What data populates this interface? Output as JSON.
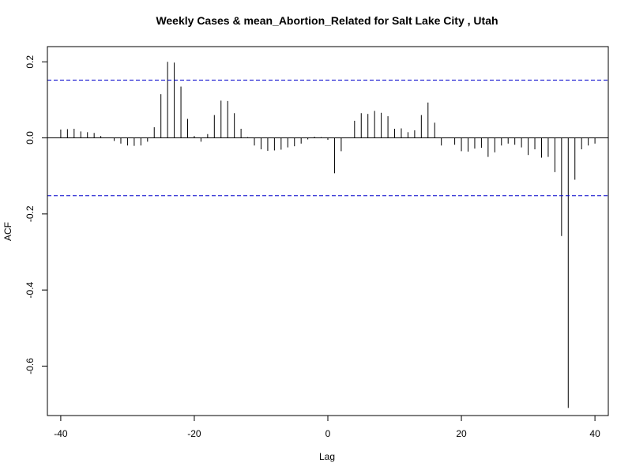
{
  "chart_data": {
    "type": "bar",
    "title": "Weekly Cases & mean_Abortion_Related for Salt Lake City , Utah",
    "xlabel": "Lag",
    "ylabel": "ACF",
    "xlim": [
      -42,
      42
    ],
    "ylim": [
      -0.73,
      0.24
    ],
    "x_ticks": [
      -40,
      -20,
      0,
      20,
      40
    ],
    "y_ticks": [
      0.2,
      0.0,
      -0.2,
      -0.4,
      -0.6
    ],
    "x_tick_labels": [
      "-40",
      "-20",
      "0",
      "20",
      "40"
    ],
    "y_tick_labels": [
      "0.2",
      "0.0",
      "-0.2",
      "-0.4",
      "-0.6"
    ],
    "confidence_bound": 0.152,
    "zero_line": true,
    "colors": {
      "bars": "#000000",
      "confidence": "#0000cc",
      "zero": "#000000"
    },
    "lags": [
      -40,
      -39,
      -38,
      -37,
      -36,
      -35,
      -34,
      -33,
      -32,
      -31,
      -30,
      -29,
      -28,
      -27,
      -26,
      -25,
      -24,
      -23,
      -22,
      -21,
      -20,
      -19,
      -18,
      -17,
      -16,
      -15,
      -14,
      -13,
      -12,
      -11,
      -10,
      -9,
      -8,
      -7,
      -6,
      -5,
      -4,
      -3,
      -2,
      -1,
      0,
      1,
      2,
      3,
      4,
      5,
      6,
      7,
      8,
      9,
      10,
      11,
      12,
      13,
      14,
      15,
      16,
      17,
      18,
      19,
      20,
      21,
      22,
      23,
      24,
      25,
      26,
      27,
      28,
      29,
      30,
      31,
      32,
      33,
      34,
      35,
      36,
      37,
      38,
      39,
      40
    ],
    "values": [
      0.022,
      0.023,
      0.024,
      0.017,
      0.015,
      0.013,
      0.005,
      0.001,
      -0.008,
      -0.015,
      -0.02,
      -0.021,
      -0.02,
      -0.01,
      0.028,
      0.115,
      0.2,
      0.198,
      0.135,
      0.05,
      0.005,
      -0.01,
      0.01,
      0.06,
      0.098,
      0.097,
      0.065,
      0.024,
      0.002,
      -0.02,
      -0.03,
      -0.034,
      -0.033,
      -0.031,
      -0.025,
      -0.022,
      -0.015,
      -0.004,
      0.003,
      0.002,
      -0.005,
      -0.093,
      -0.035,
      0.001,
      0.045,
      0.065,
      0.063,
      0.071,
      0.066,
      0.057,
      0.024,
      0.025,
      0.015,
      0.02,
      0.06,
      0.093,
      0.04,
      -0.02,
      0.001,
      -0.018,
      -0.035,
      -0.036,
      -0.028,
      -0.026,
      -0.05,
      -0.038,
      -0.02,
      -0.015,
      -0.018,
      -0.025,
      -0.045,
      -0.03,
      -0.052,
      -0.05,
      -0.09,
      -0.258,
      -0.71,
      -0.11,
      -0.03,
      -0.02,
      -0.015
    ]
  }
}
